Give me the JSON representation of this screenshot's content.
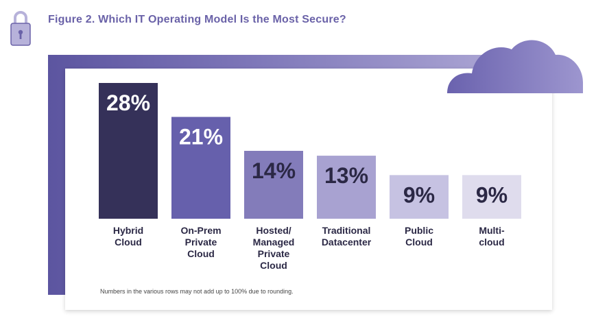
{
  "title": "Figure 2. Which IT Operating Model Is the Most Secure?",
  "footnote": "Numbers in the various rows may not add up to 100% due to rounding.",
  "colors": {
    "accent": "#6a62a8",
    "bars": [
      "#353159",
      "#6660ac",
      "#837cba",
      "#a8a2d1",
      "#c6c2e2",
      "#dfdced"
    ],
    "label_text": "#2b2845"
  },
  "icons": [
    "lock-icon",
    "cloud-icon"
  ],
  "chart_data": {
    "type": "bar",
    "title": "Figure 2. Which IT Operating Model Is the Most Secure?",
    "categories": [
      [
        "Hybrid",
        "Cloud"
      ],
      [
        "On-Prem",
        "Private",
        "Cloud"
      ],
      [
        "Hosted/",
        "Managed",
        "Private",
        "Cloud"
      ],
      [
        "Traditional",
        "Datacenter"
      ],
      [
        "Public",
        "Cloud"
      ],
      [
        "Multi-",
        "cloud"
      ]
    ],
    "values": [
      28,
      21,
      14,
      13,
      9,
      9
    ],
    "value_labels": [
      "28%",
      "21%",
      "14%",
      "13%",
      "9%",
      "9%"
    ],
    "unit": "%",
    "ylim": [
      0,
      28
    ],
    "grid": false,
    "legend": "none"
  }
}
